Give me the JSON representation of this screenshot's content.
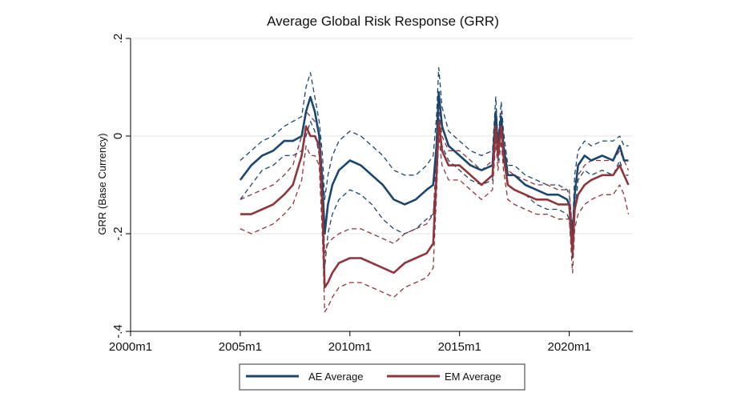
{
  "chart_data": {
    "type": "line",
    "title": "Average Global Risk Response (GRR)",
    "xlabel": "",
    "ylabel": "GRR (Base Currency)",
    "xlim": [
      2000,
      2022.9
    ],
    "ylim": [
      -0.4,
      0.2
    ],
    "x_ticks": [
      {
        "value": 2000,
        "label": "2000m1"
      },
      {
        "value": 2005,
        "label": "2005m1"
      },
      {
        "value": 2010,
        "label": "2010m1"
      },
      {
        "value": 2015,
        "label": "2015m1"
      },
      {
        "value": 2020,
        "label": "2020m1"
      }
    ],
    "y_ticks": [
      {
        "value": 0.2,
        "label": ".2"
      },
      {
        "value": 0,
        "label": "0"
      },
      {
        "value": -0.2,
        "label": "-.2"
      },
      {
        "value": -0.4,
        "label": "-.4"
      }
    ],
    "grid": "horizontal",
    "legend": {
      "placement": "bottom"
    },
    "colors": {
      "ae": "#1a476f",
      "em": "#90353b"
    },
    "x": [
      2005.0,
      2005.5,
      2006.0,
      2006.5,
      2007.0,
      2007.4,
      2007.8,
      2008.0,
      2008.2,
      2008.4,
      2008.6,
      2008.75,
      2008.85,
      2009.0,
      2009.2,
      2009.5,
      2010.0,
      2010.5,
      2011.0,
      2011.5,
      2012.0,
      2012.5,
      2013.0,
      2013.5,
      2013.8,
      2013.95,
      2014.05,
      2014.2,
      2014.5,
      2015.0,
      2015.5,
      2016.0,
      2016.5,
      2016.65,
      2016.75,
      2016.9,
      2017.0,
      2017.2,
      2017.5,
      2018.0,
      2018.5,
      2019.0,
      2019.5,
      2019.9,
      2020.0,
      2020.15,
      2020.25,
      2020.4,
      2020.7,
      2021.0,
      2021.5,
      2022.0,
      2022.3,
      2022.5,
      2022.7
    ],
    "series": [
      {
        "name": "AE Average",
        "role": "average",
        "values": [
          -0.09,
          -0.06,
          -0.04,
          -0.03,
          -0.01,
          -0.01,
          0.0,
          0.05,
          0.08,
          0.05,
          0.0,
          -0.1,
          -0.2,
          -0.14,
          -0.1,
          -0.07,
          -0.05,
          -0.06,
          -0.08,
          -0.1,
          -0.13,
          -0.14,
          -0.13,
          -0.11,
          -0.1,
          -0.02,
          0.09,
          0.02,
          -0.02,
          -0.04,
          -0.06,
          -0.07,
          -0.06,
          0.05,
          -0.03,
          0.04,
          -0.02,
          -0.08,
          -0.08,
          -0.1,
          -0.11,
          -0.12,
          -0.12,
          -0.13,
          -0.14,
          -0.22,
          -0.12,
          -0.06,
          -0.04,
          -0.05,
          -0.04,
          -0.05,
          -0.02,
          -0.05,
          -0.05
        ]
      },
      {
        "name": "AE upper band",
        "role": "band",
        "values": [
          -0.05,
          -0.03,
          -0.01,
          0.0,
          0.02,
          0.03,
          0.04,
          0.1,
          0.13,
          0.08,
          0.03,
          -0.04,
          -0.13,
          -0.08,
          -0.04,
          -0.01,
          0.01,
          0.0,
          -0.02,
          -0.04,
          -0.07,
          -0.08,
          -0.08,
          -0.06,
          -0.04,
          0.04,
          0.14,
          0.06,
          0.01,
          -0.01,
          -0.03,
          -0.04,
          -0.03,
          0.08,
          -0.01,
          0.07,
          0.01,
          -0.06,
          -0.06,
          -0.08,
          -0.09,
          -0.1,
          -0.1,
          -0.11,
          -0.12,
          -0.19,
          -0.08,
          -0.03,
          -0.01,
          -0.02,
          -0.01,
          -0.01,
          0.0,
          -0.02,
          -0.02
        ]
      },
      {
        "name": "AE lower band",
        "role": "band",
        "values": [
          -0.13,
          -0.1,
          -0.07,
          -0.06,
          -0.04,
          -0.04,
          -0.03,
          0.0,
          0.03,
          0.01,
          -0.04,
          -0.16,
          -0.27,
          -0.2,
          -0.16,
          -0.13,
          -0.11,
          -0.12,
          -0.14,
          -0.17,
          -0.19,
          -0.2,
          -0.19,
          -0.17,
          -0.16,
          -0.08,
          0.04,
          -0.02,
          -0.05,
          -0.07,
          -0.09,
          -0.1,
          -0.09,
          0.02,
          -0.05,
          0.01,
          -0.05,
          -0.1,
          -0.11,
          -0.12,
          -0.14,
          -0.15,
          -0.15,
          -0.16,
          -0.17,
          -0.25,
          -0.16,
          -0.09,
          -0.07,
          -0.08,
          -0.07,
          -0.08,
          -0.05,
          -0.08,
          -0.08
        ]
      },
      {
        "name": "EM Average",
        "role": "average",
        "values": [
          -0.16,
          -0.16,
          -0.15,
          -0.14,
          -0.12,
          -0.1,
          -0.04,
          0.02,
          0.0,
          0.0,
          -0.02,
          -0.15,
          -0.31,
          -0.3,
          -0.28,
          -0.26,
          -0.25,
          -0.25,
          -0.26,
          -0.27,
          -0.28,
          -0.26,
          -0.25,
          -0.24,
          -0.22,
          -0.08,
          0.03,
          -0.03,
          -0.06,
          -0.06,
          -0.08,
          -0.1,
          -0.08,
          0.02,
          -0.04,
          0.02,
          -0.04,
          -0.1,
          -0.11,
          -0.12,
          -0.13,
          -0.13,
          -0.14,
          -0.14,
          -0.14,
          -0.24,
          -0.15,
          -0.12,
          -0.1,
          -0.09,
          -0.08,
          -0.08,
          -0.06,
          -0.08,
          -0.1
        ]
      },
      {
        "name": "EM upper band",
        "role": "band",
        "values": [
          -0.13,
          -0.12,
          -0.11,
          -0.1,
          -0.08,
          -0.06,
          0.0,
          0.05,
          0.04,
          0.03,
          0.01,
          -0.1,
          -0.24,
          -0.22,
          -0.21,
          -0.2,
          -0.19,
          -0.19,
          -0.2,
          -0.21,
          -0.22,
          -0.2,
          -0.19,
          -0.18,
          -0.16,
          -0.04,
          0.06,
          0.0,
          -0.03,
          -0.03,
          -0.05,
          -0.07,
          -0.05,
          0.05,
          -0.01,
          0.05,
          -0.01,
          -0.07,
          -0.08,
          -0.09,
          -0.1,
          -0.1,
          -0.11,
          -0.11,
          -0.11,
          -0.2,
          -0.11,
          -0.08,
          -0.06,
          -0.05,
          -0.05,
          -0.05,
          -0.03,
          -0.05,
          -0.07
        ]
      },
      {
        "name": "EM lower band",
        "role": "band",
        "values": [
          -0.19,
          -0.2,
          -0.19,
          -0.18,
          -0.16,
          -0.14,
          -0.09,
          -0.02,
          -0.04,
          -0.04,
          -0.06,
          -0.21,
          -0.36,
          -0.35,
          -0.33,
          -0.31,
          -0.3,
          -0.3,
          -0.31,
          -0.32,
          -0.33,
          -0.31,
          -0.3,
          -0.29,
          -0.27,
          -0.12,
          0.0,
          -0.06,
          -0.09,
          -0.09,
          -0.11,
          -0.13,
          -0.11,
          -0.01,
          -0.07,
          -0.01,
          -0.07,
          -0.13,
          -0.14,
          -0.15,
          -0.16,
          -0.16,
          -0.17,
          -0.17,
          -0.17,
          -0.28,
          -0.19,
          -0.16,
          -0.14,
          -0.13,
          -0.12,
          -0.12,
          -0.1,
          -0.12,
          -0.16
        ]
      }
    ]
  }
}
